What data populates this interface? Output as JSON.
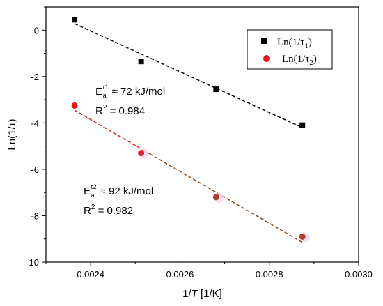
{
  "chart_data": {
    "type": "scatter",
    "xlabel_main": "1/",
    "xlabel_var": "T",
    "xlabel_unit": " [1/K]",
    "ylabel": "Ln(1/τ)",
    "xlim": [
      0.0023,
      0.003
    ],
    "ylim": [
      -10,
      1
    ],
    "xticks": [
      0.0024,
      0.0026,
      0.0028,
      0.003
    ],
    "xtick_labels": [
      "0.0024",
      "0.0026",
      "0.0028",
      "0.0030"
    ],
    "yticks": [
      -10,
      -8,
      -6,
      -4,
      -2,
      0
    ],
    "ytick_labels": [
      "-10",
      "-8",
      "-6",
      "-4",
      "-2",
      "0"
    ],
    "legend_position": "top-right",
    "series": [
      {
        "name_base": "Ln(1/τ",
        "name_sub": "1",
        "name_end": ")",
        "marker": "square",
        "color": "#000000",
        "fit_color": "#000000",
        "x": [
          0.002364,
          0.002513,
          0.002681,
          0.002874
        ],
        "y": [
          0.45,
          -1.35,
          -2.55,
          -4.1
        ],
        "fit": {
          "x": [
            0.002364,
            0.002874
          ],
          "y": [
            0.28,
            -4.2
          ]
        }
      },
      {
        "name_base": "Ln(1/τ",
        "name_sub": "2",
        "name_end": ")",
        "marker": "circle",
        "color": "#e41a1c",
        "edge_color": "#a0522d",
        "fit_color": "#e41a1c",
        "fit_color2": "#8b4513",
        "x": [
          0.002364,
          0.002513,
          0.002681,
          0.002874
        ],
        "y": [
          -3.25,
          -5.3,
          -7.2,
          -8.9
        ],
        "fit": {
          "x": [
            0.002364,
            0.002874
          ],
          "y": [
            -3.45,
            -9.15
          ]
        }
      }
    ],
    "annotations": [
      {
        "e_base": "E",
        "e_sub": "a",
        "e_sup": "τ1",
        "text": "≈ 72 kJ/mol",
        "r2_base": "R",
        "r2_sup": "2",
        "r2_text": " = 0.984"
      },
      {
        "e_base": "E",
        "e_sub": "a",
        "e_sup": "τ2",
        "text": "≈ 92 kJ/mol",
        "r2_base": "R",
        "r2_sup": "2",
        "r2_text": " = 0.982"
      }
    ]
  }
}
